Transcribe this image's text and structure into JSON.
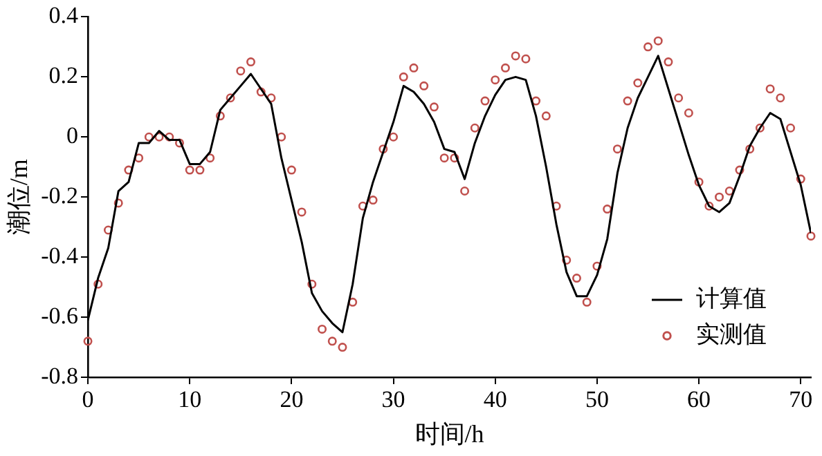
{
  "chart_data": {
    "type": "line",
    "xlabel": "时间/h",
    "ylabel": "潮位/m",
    "xlim": [
      0,
      71
    ],
    "xticks": [
      0,
      10,
      20,
      30,
      40,
      50,
      60,
      70
    ],
    "ylim": [
      -0.8,
      0.4
    ],
    "yticks": [
      -0.8,
      -0.6,
      -0.4,
      -0.2,
      0,
      0.2,
      0.4
    ],
    "grid": false,
    "legend": "bottom right",
    "x": [
      0,
      1,
      2,
      3,
      4,
      5,
      6,
      7,
      8,
      9,
      10,
      11,
      12,
      13,
      14,
      15,
      16,
      17,
      18,
      19,
      20,
      21,
      22,
      23,
      24,
      25,
      26,
      27,
      28,
      29,
      30,
      31,
      32,
      33,
      34,
      35,
      36,
      37,
      38,
      39,
      40,
      41,
      42,
      43,
      44,
      45,
      46,
      47,
      48,
      49,
      50,
      51,
      52,
      53,
      54,
      55,
      56,
      57,
      58,
      59,
      60,
      61,
      62,
      63,
      64,
      65,
      66,
      67,
      68,
      69,
      70,
      71
    ],
    "series": [
      {
        "name": "计算值",
        "color": "#000000",
        "marker": "none",
        "line_style": "solid",
        "values": [
          -0.61,
          -0.47,
          -0.37,
          -0.18,
          -0.15,
          -0.02,
          -0.02,
          0.02,
          -0.01,
          -0.01,
          -0.09,
          -0.09,
          -0.05,
          0.09,
          0.13,
          0.17,
          0.21,
          0.16,
          0.11,
          -0.07,
          -0.21,
          -0.35,
          -0.52,
          -0.58,
          -0.62,
          -0.65,
          -0.49,
          -0.27,
          -0.15,
          -0.05,
          0.05,
          0.17,
          0.15,
          0.11,
          0.05,
          -0.04,
          -0.05,
          -0.14,
          -0.02,
          0.07,
          0.14,
          0.19,
          0.2,
          0.19,
          0.07,
          -0.1,
          -0.29,
          -0.45,
          -0.53,
          -0.53,
          -0.46,
          -0.34,
          -0.12,
          0.03,
          0.13,
          0.2,
          0.27,
          0.16,
          0.05,
          -0.06,
          -0.16,
          -0.23,
          -0.25,
          -0.22,
          -0.13,
          -0.03,
          0.03,
          0.08,
          0.06,
          -0.05,
          -0.16,
          -0.32
        ]
      },
      {
        "name": "实测值",
        "type": "scatter",
        "color": "#c0504d",
        "marker": "circle",
        "values": [
          -0.68,
          -0.49,
          -0.31,
          -0.22,
          -0.11,
          -0.07,
          0,
          0,
          0,
          -0.02,
          -0.11,
          -0.11,
          -0.07,
          0.07,
          0.13,
          0.22,
          0.25,
          0.15,
          0.13,
          0,
          -0.11,
          -0.25,
          -0.49,
          -0.64,
          -0.68,
          -0.7,
          -0.55,
          -0.23,
          -0.21,
          -0.04,
          0,
          0.2,
          0.23,
          0.17,
          0.1,
          -0.07,
          -0.07,
          -0.18,
          0.03,
          0.12,
          0.19,
          0.23,
          0.27,
          0.26,
          0.12,
          0.07,
          -0.23,
          -0.41,
          -0.47,
          -0.55,
          -0.43,
          -0.24,
          -0.04,
          0.12,
          0.18,
          0.3,
          0.32,
          0.25,
          0.13,
          0.08,
          -0.15,
          -0.23,
          -0.2,
          -0.18,
          -0.11,
          -0.04,
          0.03,
          0.16,
          0.13,
          0.03,
          -0.14,
          -0.33
        ]
      }
    ]
  }
}
